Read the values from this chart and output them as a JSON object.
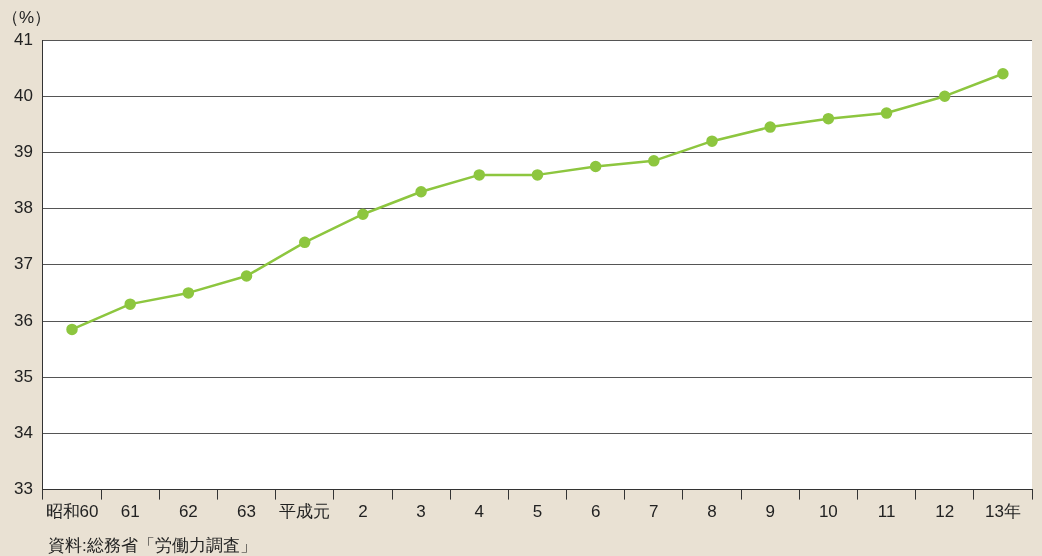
{
  "chart_data": {
    "type": "line",
    "ylabel": "（%）",
    "categories": [
      "昭和60",
      "61",
      "62",
      "63",
      "平成元",
      "2",
      "3",
      "4",
      "5",
      "6",
      "7",
      "8",
      "9",
      "10",
      "11",
      "12",
      "13年"
    ],
    "series": [
      {
        "color": "#8dc63f",
        "values": [
          35.85,
          36.3,
          36.5,
          36.8,
          37.4,
          37.9,
          38.3,
          38.6,
          38.6,
          38.75,
          38.85,
          39.2,
          39.45,
          39.6,
          39.7,
          40.0,
          40.4
        ]
      }
    ],
    "ylim": [
      33,
      41
    ],
    "yticks": [
      33,
      34,
      35,
      36,
      37,
      38,
      39,
      40,
      41
    ],
    "grid": "y",
    "legend": false,
    "marker": "circle",
    "line_style": "solid",
    "annotations": [
      "資料:総務省「労働力調査」"
    ]
  }
}
